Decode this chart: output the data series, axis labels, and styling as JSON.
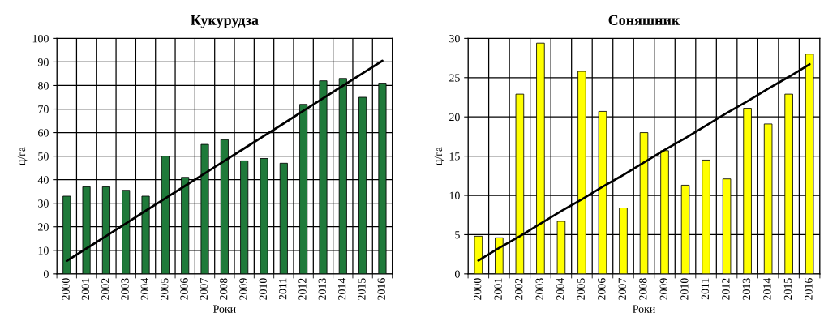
{
  "chart_data": [
    {
      "type": "bar",
      "title": "Кукурудза",
      "xlabel": "Роки",
      "ylabel": "ц/га",
      "categories": [
        "2000",
        "2001",
        "2002",
        "2003",
        "2004",
        "2005",
        "2006",
        "2007",
        "2008",
        "2009",
        "2010",
        "2011",
        "2012",
        "2013",
        "2014",
        "2015",
        "2016"
      ],
      "ylim": [
        0,
        100
      ],
      "yticks": [
        0,
        10,
        20,
        30,
        40,
        50,
        60,
        70,
        80,
        90,
        100
      ],
      "grid": true,
      "series": [
        {
          "color": "#1f7a3a",
          "values": [
            33,
            37,
            37,
            35.5,
            33,
            50,
            41,
            55,
            57,
            48,
            49,
            47,
            72,
            82,
            83,
            75,
            81
          ]
        },
        {
          "type": "line",
          "color": "#000000",
          "values": [
            5.5,
            10.8,
            16.1,
            21.4,
            26.8,
            32.1,
            37.4,
            42.7,
            48,
            53.3,
            58.6,
            63.9,
            69.3,
            74.6,
            79.9,
            85.2,
            90.5
          ]
        }
      ]
    },
    {
      "type": "bar",
      "title": "Соняшник",
      "xlabel": "Роки",
      "ylabel": "ц/га",
      "categories": [
        "2000",
        "2001",
        "2002",
        "2003",
        "2004",
        "2005",
        "2006",
        "2007",
        "2008",
        "2009",
        "2010",
        "2011",
        "2012",
        "2013",
        "2014",
        "2015",
        "2016"
      ],
      "ylim": [
        0,
        30
      ],
      "yticks": [
        0,
        5,
        10,
        15,
        20,
        25,
        30
      ],
      "grid": true,
      "series": [
        {
          "color": "#ffff00",
          "values": [
            4.8,
            4.6,
            22.9,
            29.4,
            6.7,
            25.8,
            20.7,
            8.4,
            18,
            15.7,
            11.3,
            14.5,
            12.1,
            21.1,
            19.1,
            22.9,
            28
          ]
        },
        {
          "type": "line",
          "color": "#000000",
          "values": [
            1.7,
            3.3,
            4.8,
            6.4,
            8,
            9.5,
            11.1,
            12.6,
            14.2,
            15.8,
            17.3,
            18.9,
            20.5,
            22,
            23.6,
            25.1,
            26.7
          ]
        }
      ]
    }
  ]
}
